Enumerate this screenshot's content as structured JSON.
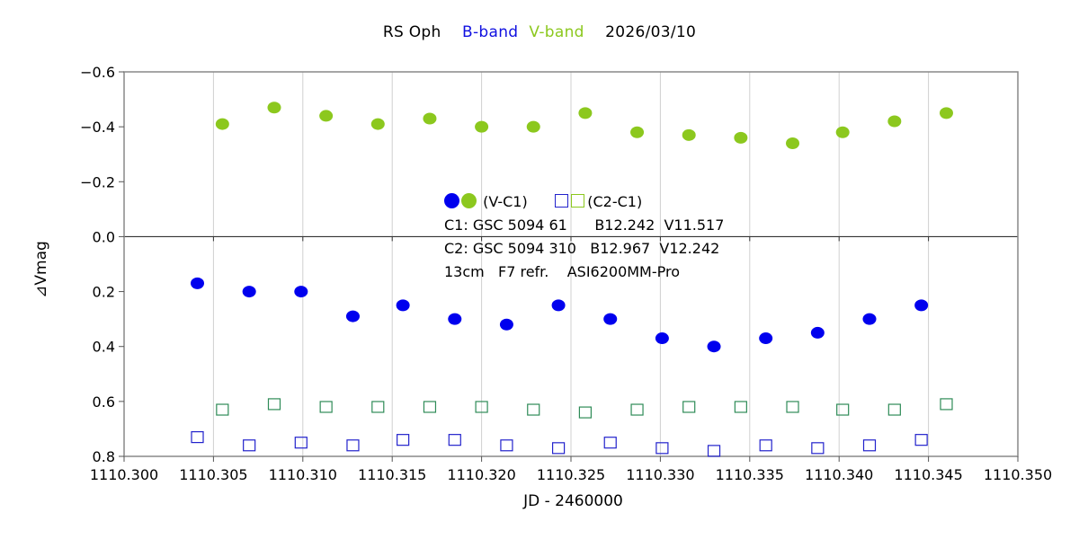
{
  "title": {
    "star": "RS Oph",
    "band_b": "B-band",
    "band_v": "V-band",
    "date": "2026/03/10"
  },
  "colors": {
    "b_dot": "#0000ee",
    "v_dot": "#8cc81e",
    "b_square": "#2222cc",
    "v_square": "#2e8b57"
  },
  "legend": {
    "vc1_label": "(V-C1)",
    "c2c1_label": "(C2-C1)",
    "line1": "C1: GSC 5094 61      B12.242  V11.517",
    "line2": "C2: GSC 5094 310   B12.967  V12.242",
    "line3": "13cm   F7 refr.    ASI6200MM-Pro"
  },
  "chart_data": {
    "type": "scatter",
    "xlabel": "JD - 2460000",
    "ylabel": "⊿Vmag",
    "xlim": [
      1110.3,
      1110.35
    ],
    "ylim": [
      -0.6,
      0.8
    ],
    "y_inverted": true,
    "x_ticks": [
      "1110.300",
      "1110.305",
      "1110.310",
      "1110.315",
      "1110.320",
      "1110.325",
      "1110.330",
      "1110.335",
      "1110.340",
      "1110.345",
      "1110.350"
    ],
    "y_ticks": [
      "-0.6",
      "-0.4",
      "-0.2",
      "0.0",
      "0.2",
      "0.4",
      "0.6",
      "0.8"
    ],
    "grid": "vertical",
    "series": [
      {
        "name": "V-band (V-C1)",
        "marker": "filled-circle",
        "color": "#8cc81e",
        "x": [
          1110.3055,
          1110.3084,
          1110.3113,
          1110.3142,
          1110.3171,
          1110.32,
          1110.3229,
          1110.3258,
          1110.3287,
          1110.3316,
          1110.3345,
          1110.3374,
          1110.3402,
          1110.3431,
          1110.346
        ],
        "y": [
          -0.41,
          -0.47,
          -0.44,
          -0.41,
          -0.43,
          -0.4,
          -0.4,
          -0.45,
          -0.38,
          -0.37,
          -0.36,
          -0.34,
          -0.38,
          -0.42,
          -0.45
        ]
      },
      {
        "name": "B-band (V-C1)",
        "marker": "filled-circle",
        "color": "#0000ee",
        "x": [
          1110.3041,
          1110.307,
          1110.3099,
          1110.3128,
          1110.3156,
          1110.3185,
          1110.3214,
          1110.3243,
          1110.3272,
          1110.3301,
          1110.333,
          1110.3359,
          1110.3388,
          1110.3417,
          1110.3446
        ],
        "y": [
          0.17,
          0.2,
          0.2,
          0.29,
          0.25,
          0.3,
          0.32,
          0.25,
          0.3,
          0.37,
          0.4,
          0.37,
          0.35,
          0.3,
          0.25
        ]
      },
      {
        "name": "V-band (C2-C1)",
        "marker": "open-square",
        "color": "#2e8b57",
        "x": [
          1110.3055,
          1110.3084,
          1110.3113,
          1110.3142,
          1110.3171,
          1110.32,
          1110.3229,
          1110.3258,
          1110.3287,
          1110.3316,
          1110.3345,
          1110.3374,
          1110.3402,
          1110.3431,
          1110.346
        ],
        "y": [
          0.63,
          0.61,
          0.62,
          0.62,
          0.62,
          0.62,
          0.63,
          0.64,
          0.63,
          0.62,
          0.62,
          0.62,
          0.63,
          0.63,
          0.61
        ]
      },
      {
        "name": "B-band (C2-C1)",
        "marker": "open-square",
        "color": "#2222cc",
        "x": [
          1110.3041,
          1110.307,
          1110.3099,
          1110.3128,
          1110.3156,
          1110.3185,
          1110.3214,
          1110.3243,
          1110.3272,
          1110.3301,
          1110.333,
          1110.3359,
          1110.3388,
          1110.3417,
          1110.3446
        ],
        "y": [
          0.73,
          0.76,
          0.75,
          0.76,
          0.74,
          0.74,
          0.76,
          0.77,
          0.75,
          0.77,
          0.78,
          0.76,
          0.77,
          0.76,
          0.74
        ]
      }
    ]
  }
}
